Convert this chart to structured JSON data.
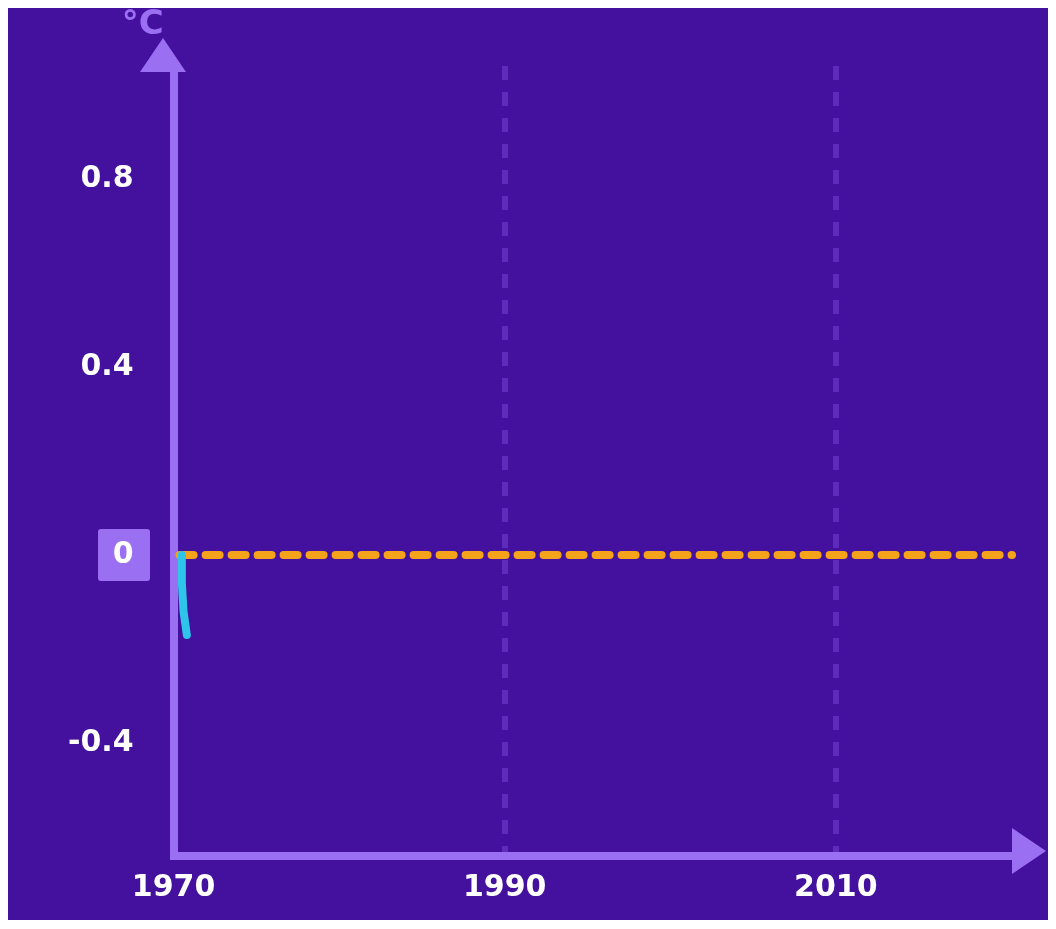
{
  "chart_data": {
    "type": "line",
    "ylabel": "°C",
    "xlim": [
      1970,
      2021
    ],
    "xticks": [
      1970,
      1990,
      2010
    ],
    "ylim": [
      -0.64,
      1.04
    ],
    "yticks": [
      -0.4,
      0.4,
      0.8,
      {
        "value": 0,
        "label": "0"
      }
    ],
    "grid": "x",
    "marker": "none",
    "line_style": "solid",
    "series": [
      {
        "color": "#2fc4ea",
        "x": [
          1970.5,
          1970.5,
          1970.6,
          1970.8
        ],
        "values": [
          0,
          -0.06,
          -0.12,
          -0.17
        ]
      }
    ],
    "ref_lines": [
      {
        "axis": "y",
        "value": 0,
        "color": "#f5a31a",
        "line_style": "dashed"
      }
    ]
  }
}
